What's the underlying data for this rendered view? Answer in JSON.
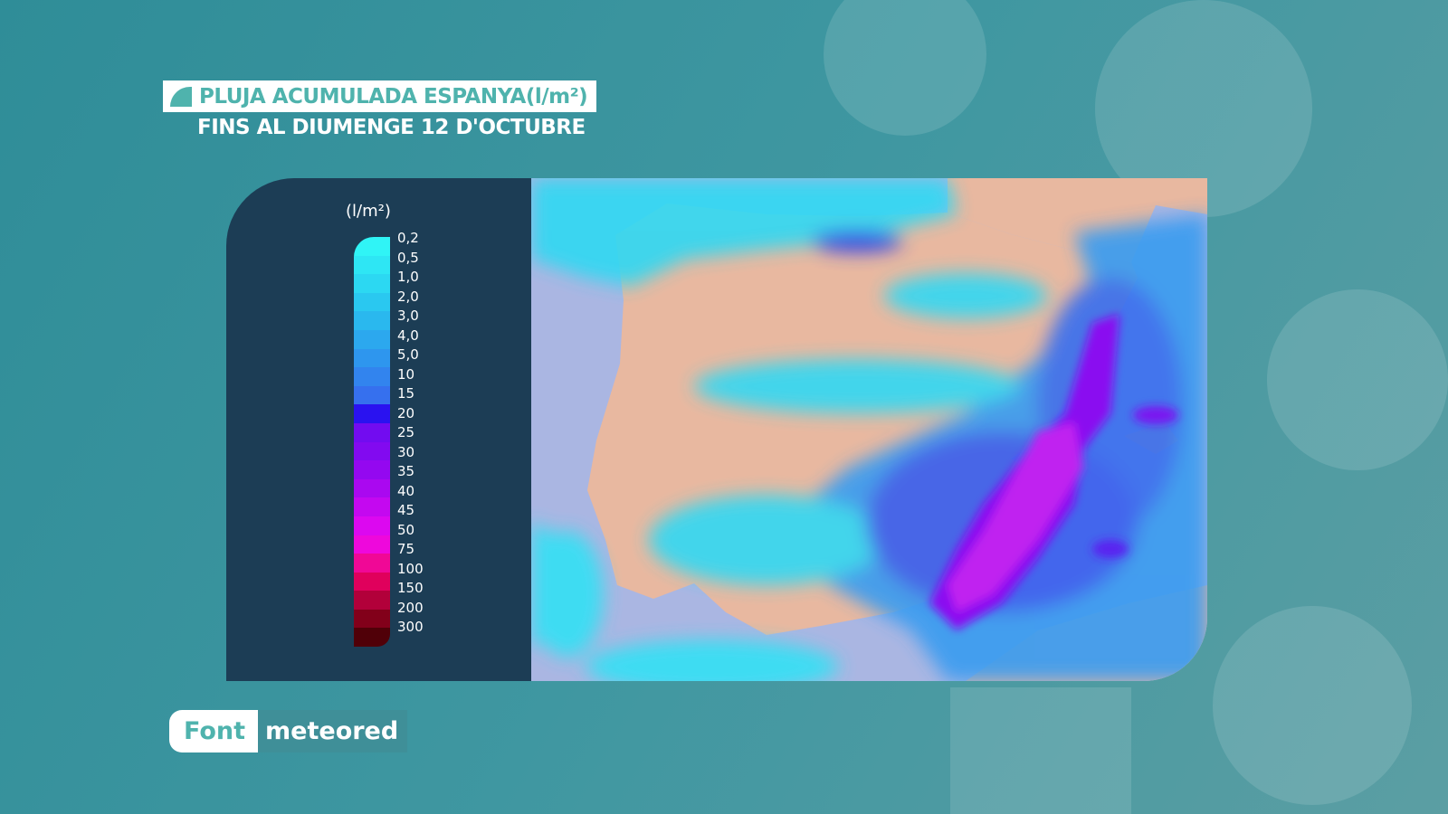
{
  "header": {
    "title": "PLUJA ACUMULADA ESPANYA(l/m²)",
    "subtitle": "FINS AL DIUMENGE 12 D'OCTUBRE"
  },
  "legend": {
    "unit": "(l/m²)",
    "labels": [
      "0,2",
      "0,5",
      "1,0",
      "2,0",
      "3,0",
      "4,0",
      "5,0",
      "10",
      "15",
      "20",
      "25",
      "30",
      "35",
      "40",
      "45",
      "50",
      "75",
      "100",
      "150",
      "200",
      "300"
    ],
    "colors": [
      "#30f4f6",
      "#2ee6f4",
      "#2cd8f2",
      "#2ac8f0",
      "#2ab8ee",
      "#2ca8ee",
      "#2e96ee",
      "#3284ee",
      "#3670ee",
      "#2a12f0",
      "#720cf0",
      "#820af0",
      "#9408f0",
      "#aa08f0",
      "#c408f0",
      "#dc08f0",
      "#ee08dc",
      "#f00896",
      "#e0005c",
      "#b2003a",
      "#82001a",
      "#500008"
    ]
  },
  "footer": {
    "source_label": "Font",
    "source_name": "meteored"
  },
  "map": {
    "land_color": "#e8b8a0",
    "sea_color": "#aab6e2"
  }
}
